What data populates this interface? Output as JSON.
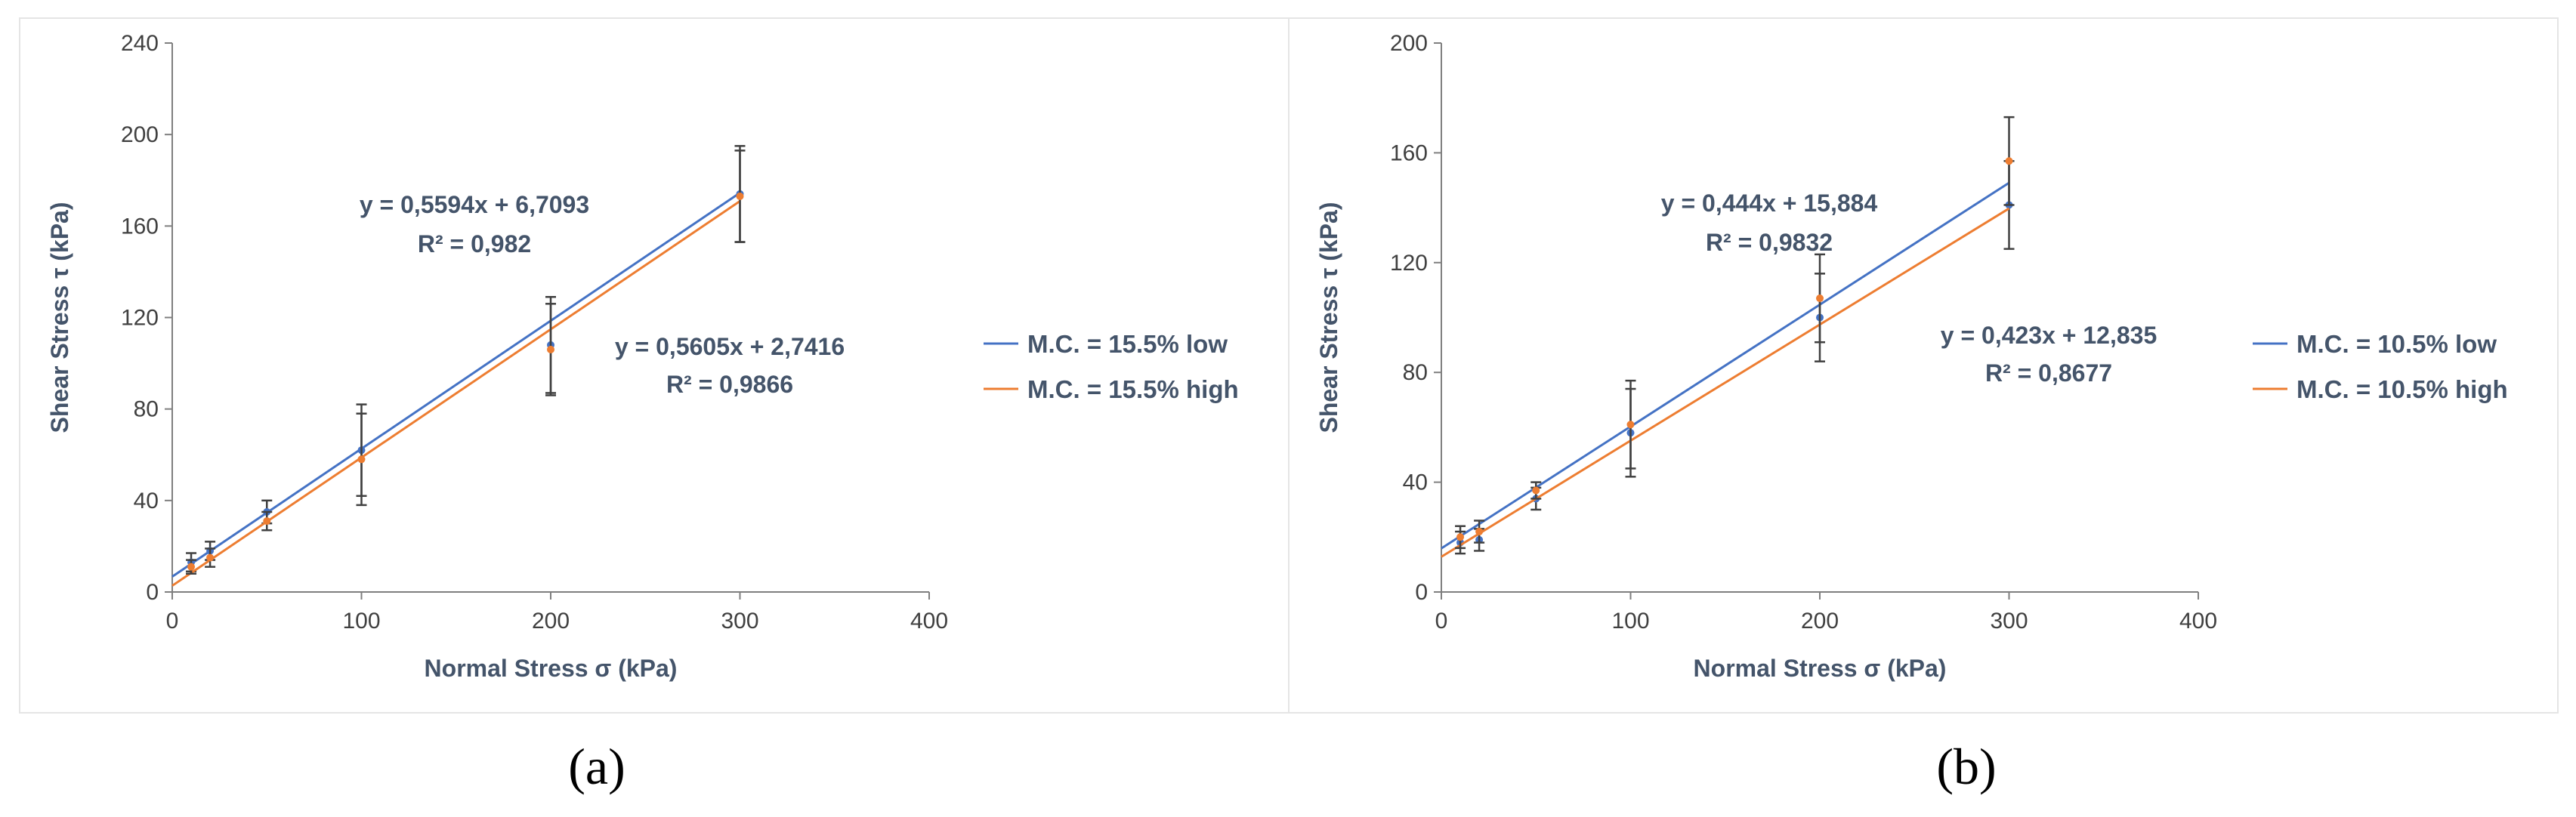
{
  "chart_data": [
    {
      "id": "a",
      "type": "scatter",
      "caption": "(a)",
      "xlabel": "Normal Stress σ (kPa)",
      "ylabel": "Shear Stress τ (kPa)",
      "xlim": [
        0,
        400
      ],
      "ylim": [
        0,
        240
      ],
      "xticks": [
        0,
        100,
        200,
        300,
        400
      ],
      "yticks": [
        0,
        40,
        80,
        120,
        160,
        200,
        240
      ],
      "grid": false,
      "legend_position": "right",
      "series": [
        {
          "name": "M.C. = 15.5% low",
          "color": "#4472C4",
          "points": [
            {
              "x": 10,
              "y": 13,
              "err": 4
            },
            {
              "x": 20,
              "y": 18,
              "err": 4
            },
            {
              "x": 50,
              "y": 35,
              "err": 5
            },
            {
              "x": 100,
              "y": 62,
              "err": 20
            },
            {
              "x": 200,
              "y": 108,
              "err": 21
            },
            {
              "x": 300,
              "y": 174,
              "err": 21
            }
          ],
          "trendline": {
            "slope": 0.5594,
            "intercept": 6.7093,
            "x_range": [
              0,
              300
            ]
          },
          "equation": "y = 0,5594x + 6,7093",
          "r2": "R² = 0,982"
        },
        {
          "name": "M.C. = 15.5% high",
          "color": "#ED7D31",
          "points": [
            {
              "x": 10,
              "y": 11,
              "err": 3
            },
            {
              "x": 20,
              "y": 15,
              "err": 4
            },
            {
              "x": 50,
              "y": 31,
              "err": 4
            },
            {
              "x": 100,
              "y": 58,
              "err": 20
            },
            {
              "x": 200,
              "y": 106,
              "err": 20
            },
            {
              "x": 300,
              "y": 173,
              "err": 20
            }
          ],
          "trendline": {
            "slope": 0.5605,
            "intercept": 2.7416,
            "x_range": [
              0,
              300
            ]
          },
          "equation": "y = 0,5605x + 2,7416",
          "r2": "R² = 0,9866"
        }
      ]
    },
    {
      "id": "b",
      "type": "scatter",
      "caption": "(b)",
      "xlabel": "Normal Stress σ (kPa)",
      "ylabel": "Shear Stress τ (kPa)",
      "xlim": [
        0,
        400
      ],
      "ylim": [
        0,
        200
      ],
      "xticks": [
        0,
        100,
        200,
        300,
        400
      ],
      "yticks": [
        0,
        40,
        80,
        120,
        160,
        200
      ],
      "grid": false,
      "legend_position": "right",
      "series": [
        {
          "name": "M.C. = 10.5% low",
          "color": "#4472C4",
          "points": [
            {
              "x": 10,
              "y": 18,
              "err": 4
            },
            {
              "x": 20,
              "y": 19,
              "err": 4
            },
            {
              "x": 50,
              "y": 34,
              "err": 4
            },
            {
              "x": 100,
              "y": 58,
              "err": 16
            },
            {
              "x": 200,
              "y": 100,
              "err": 16
            },
            {
              "x": 300,
              "y": 141,
              "err": 16
            }
          ],
          "trendline": {
            "slope": 0.444,
            "intercept": 15.884,
            "x_range": [
              0,
              300
            ]
          },
          "equation": "y = 0,444x + 15,884",
          "r2": "R² = 0,9832"
        },
        {
          "name": "M.C. = 10.5% high",
          "color": "#ED7D31",
          "points": [
            {
              "x": 10,
              "y": 20,
              "err": 4
            },
            {
              "x": 20,
              "y": 22,
              "err": 4
            },
            {
              "x": 50,
              "y": 37,
              "err": 3
            },
            {
              "x": 100,
              "y": 61,
              "err": 16
            },
            {
              "x": 200,
              "y": 107,
              "err": 16
            },
            {
              "x": 300,
              "y": 157,
              "err": 16
            }
          ],
          "trendline": {
            "slope": 0.423,
            "intercept": 12.835,
            "x_range": [
              0,
              300
            ]
          },
          "equation": "y = 0,423x + 12,835",
          "r2": "R² = 0,8677"
        }
      ]
    }
  ]
}
